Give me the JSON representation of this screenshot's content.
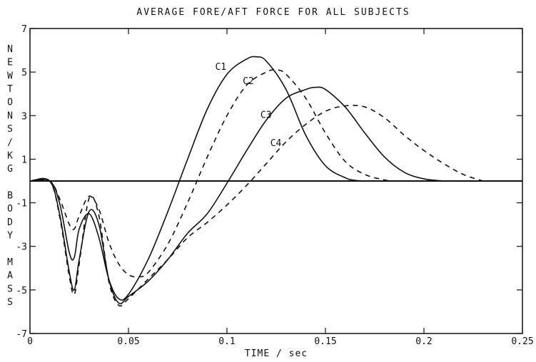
{
  "chart_data": {
    "type": "line",
    "title": "AVERAGE FORE/AFT FORCE FOR ALL SUBJECTS",
    "xlabel": "TIME / sec",
    "ylabel": "NEWTONS/KG BODY MASS",
    "xlim": [
      0,
      0.25
    ],
    "ylim": [
      -7,
      7
    ],
    "xticks": [
      0,
      0.05,
      0.1,
      0.15,
      0.2,
      0.25
    ],
    "xtick_labels": [
      "0",
      "0.05",
      "0.1",
      "0.15",
      "0.2",
      "0.25"
    ],
    "yticks": [
      -7,
      -5,
      -3,
      -1,
      1,
      3,
      5,
      7
    ],
    "ytick_labels": [
      "-7",
      "-5",
      "-3",
      "-1",
      "1",
      "3",
      "5",
      "7"
    ],
    "zero_line": true,
    "grid": false,
    "series": [
      {
        "name": "C1",
        "style": "solid",
        "x": [
          0,
          0.01,
          0.015,
          0.02,
          0.0225,
          0.025,
          0.03,
          0.035,
          0.04,
          0.045,
          0.05,
          0.06,
          0.07,
          0.08,
          0.09,
          0.1,
          0.11,
          0.115,
          0.12,
          0.13,
          0.14,
          0.15,
          0.16,
          0.165,
          0.17
        ],
        "y": [
          0,
          0,
          -1.0,
          -3.3,
          -3.5,
          -2.2,
          -1.5,
          -2.6,
          -4.5,
          -5.4,
          -5.2,
          -3.6,
          -1.4,
          1.0,
          3.3,
          4.9,
          5.6,
          5.7,
          5.5,
          4.2,
          2.1,
          0.7,
          0.15,
          0.03,
          0
        ]
      },
      {
        "name": "C2",
        "style": "dashed",
        "x": [
          0,
          0.01,
          0.015,
          0.02,
          0.0225,
          0.025,
          0.03,
          0.035,
          0.04,
          0.045,
          0.05,
          0.055,
          0.06,
          0.07,
          0.08,
          0.09,
          0.1,
          0.11,
          0.12,
          0.125,
          0.13,
          0.14,
          0.15,
          0.16,
          0.17,
          0.18,
          0.185
        ],
        "y": [
          0,
          0,
          -0.8,
          -2.0,
          -2.2,
          -1.6,
          -0.7,
          -1.3,
          -2.8,
          -3.8,
          -4.3,
          -4.4,
          -4.2,
          -2.9,
          -1.0,
          1.1,
          3.0,
          4.4,
          5.0,
          5.1,
          4.9,
          3.8,
          2.2,
          0.9,
          0.3,
          0.05,
          0
        ]
      },
      {
        "name": "C3",
        "style": "solid",
        "x": [
          0,
          0.01,
          0.015,
          0.02,
          0.0225,
          0.025,
          0.03,
          0.035,
          0.04,
          0.045,
          0.05,
          0.06,
          0.07,
          0.08,
          0.09,
          0.1,
          0.11,
          0.12,
          0.13,
          0.14,
          0.145,
          0.15,
          0.16,
          0.17,
          0.18,
          0.19,
          0.2,
          0.21
        ],
        "y": [
          0,
          0,
          -1.5,
          -4.2,
          -5.0,
          -3.6,
          -1.4,
          -2.0,
          -4.5,
          -5.6,
          -5.3,
          -4.6,
          -3.6,
          -2.4,
          -1.5,
          -0.1,
          1.4,
          2.8,
          3.8,
          4.2,
          4.3,
          4.2,
          3.4,
          2.2,
          1.1,
          0.4,
          0.1,
          0
        ]
      },
      {
        "name": "C4",
        "style": "dashed",
        "x": [
          0,
          0.01,
          0.015,
          0.02,
          0.0225,
          0.025,
          0.03,
          0.035,
          0.04,
          0.045,
          0.05,
          0.06,
          0.07,
          0.08,
          0.09,
          0.1,
          0.11,
          0.12,
          0.13,
          0.14,
          0.15,
          0.16,
          0.17,
          0.18,
          0.19,
          0.2,
          0.21,
          0.22,
          0.23
        ],
        "y": [
          0,
          0,
          -1.6,
          -4.4,
          -5.2,
          -3.8,
          -0.8,
          -1.6,
          -4.6,
          -5.7,
          -5.4,
          -4.5,
          -3.6,
          -2.6,
          -1.9,
          -1.1,
          -0.2,
          0.8,
          1.8,
          2.6,
          3.2,
          3.45,
          3.4,
          2.9,
          2.1,
          1.4,
          0.8,
          0.3,
          0
        ]
      }
    ],
    "series_labels": [
      {
        "name": "C1",
        "x": 0.094,
        "y": 5.1
      },
      {
        "name": "C2",
        "x": 0.108,
        "y": 4.45
      },
      {
        "name": "C3",
        "x": 0.117,
        "y": 2.9
      },
      {
        "name": "C4",
        "x": 0.122,
        "y": 1.6
      }
    ]
  }
}
